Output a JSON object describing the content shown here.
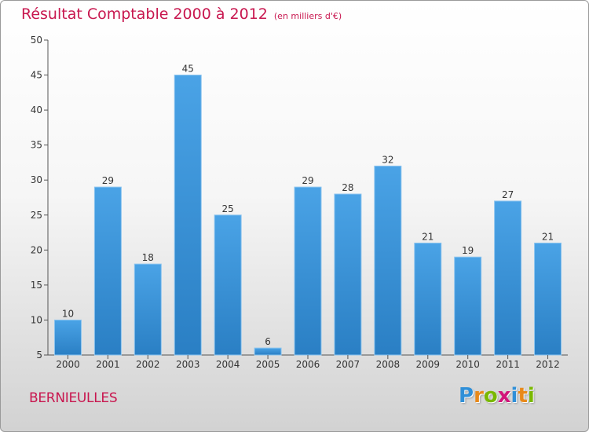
{
  "header": {
    "title": "Résultat Comptable 2000 à 2012",
    "subtitle": "(en milliers d'€)"
  },
  "footer": {
    "city": "BERNIEULLES",
    "brand_letters": [
      "P",
      "r",
      "o",
      "x",
      "i",
      "t",
      "i"
    ],
    "brand_colors": [
      "#2f8fd8",
      "#e8891a",
      "#7ab800",
      "#d2157a",
      "#2f8fd8",
      "#e8891a",
      "#7ab800"
    ]
  },
  "chart_data": {
    "type": "bar",
    "title": "Résultat Comptable 2000 à 2012",
    "subtitle": "(en milliers d'€)",
    "xlabel": "",
    "ylabel": "",
    "categories": [
      "2000",
      "2001",
      "2002",
      "2003",
      "2004",
      "2005",
      "2006",
      "2007",
      "2008",
      "2009",
      "2010",
      "2011",
      "2012"
    ],
    "values": [
      10,
      29,
      18,
      45,
      25,
      6,
      29,
      28,
      32,
      21,
      19,
      27,
      21
    ],
    "ylim": [
      5,
      50
    ],
    "yticks": [
      5,
      10,
      15,
      20,
      25,
      30,
      35,
      40,
      45,
      50
    ],
    "grid": false,
    "bar_color": "#4aa3e6",
    "bar_color_dark": "#2a7fc4"
  }
}
